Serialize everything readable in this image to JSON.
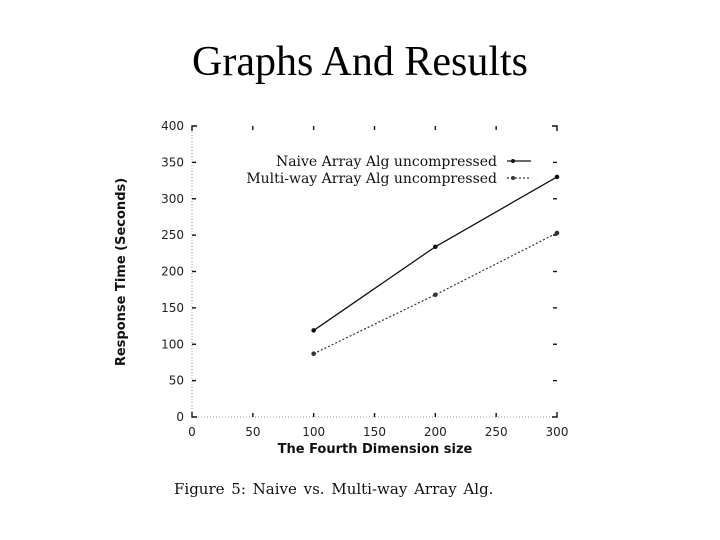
{
  "slide": {
    "title": "Graphs And Results",
    "caption": "Figure 5: Naive vs. Multi-way Array Alg."
  },
  "chart_data": {
    "type": "line",
    "title": "",
    "xlabel": "The Fourth Dimension size",
    "ylabel": "Response Time (Seconds)",
    "xlim": [
      0,
      300
    ],
    "ylim": [
      0,
      400
    ],
    "xticks": [
      0,
      50,
      100,
      150,
      200,
      250,
      300
    ],
    "yticks": [
      0,
      50,
      100,
      150,
      200,
      250,
      300,
      350,
      400
    ],
    "grid": false,
    "legend_position": "top-right",
    "series": [
      {
        "name": "Naive Array Alg uncompressed",
        "style": "solid",
        "color": "#111111",
        "x": [
          100,
          200,
          300
        ],
        "y": [
          119,
          234,
          330
        ]
      },
      {
        "name": "Multi-way Array Alg uncompressed",
        "style": "dotted",
        "color": "#333333",
        "x": [
          100,
          200,
          300
        ],
        "y": [
          87,
          168,
          253
        ]
      }
    ]
  }
}
